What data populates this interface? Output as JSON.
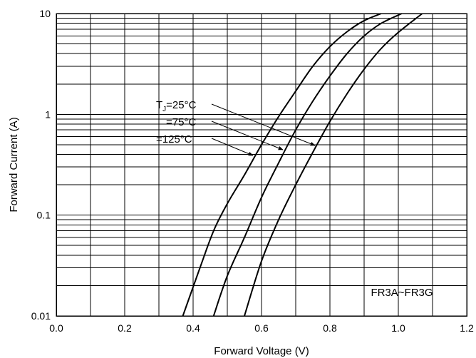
{
  "chart_data": {
    "type": "line",
    "title": "",
    "xlabel": "Forward Voltage (V)",
    "ylabel": "Forward Current (A)",
    "xlim": [
      0.0,
      1.2
    ],
    "ylim": [
      0.01,
      10
    ],
    "yscale": "log",
    "grid": true,
    "x_ticks": [
      "0.0",
      "0.2",
      "0.4",
      "0.6",
      "0.8",
      "1.0",
      "1.2"
    ],
    "y_ticks": [
      "0.01",
      "0.1",
      "1",
      "10"
    ],
    "series": [
      {
        "name": "TJ=25°C",
        "x": [
          0.37,
          0.42,
          0.46,
          0.5,
          0.55,
          0.6,
          0.65,
          0.7,
          0.75,
          0.8,
          0.85,
          0.9,
          0.95
        ],
        "y": [
          0.01,
          0.03,
          0.07,
          0.13,
          0.25,
          0.5,
          0.95,
          1.7,
          3.0,
          4.7,
          6.6,
          8.5,
          10
        ]
      },
      {
        "name": "=75°C",
        "x": [
          0.46,
          0.5,
          0.55,
          0.6,
          0.65,
          0.7,
          0.75,
          0.8,
          0.85,
          0.9,
          0.95,
          1.01
        ],
        "y": [
          0.01,
          0.025,
          0.06,
          0.15,
          0.33,
          0.7,
          1.35,
          2.4,
          4.0,
          6.0,
          8.0,
          10
        ]
      },
      {
        "name": "=125°C",
        "x": [
          0.55,
          0.6,
          0.65,
          0.7,
          0.75,
          0.8,
          0.85,
          0.9,
          0.95,
          1.0,
          1.07
        ],
        "y": [
          0.01,
          0.035,
          0.09,
          0.2,
          0.42,
          0.85,
          1.6,
          2.8,
          4.5,
          6.5,
          10
        ]
      }
    ],
    "annotations": {
      "tj_prefix": "T",
      "tj_subscript": "J",
      "label_25": "=25°C",
      "label_75": "=75°C",
      "label_125": "=125°C",
      "part_number": "FR3A~FR3G"
    }
  }
}
